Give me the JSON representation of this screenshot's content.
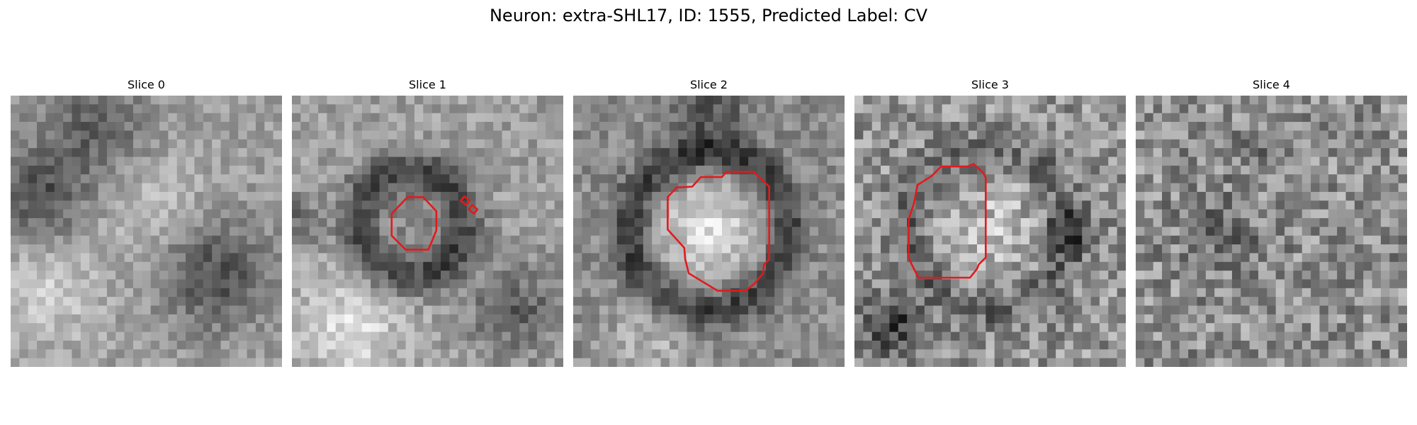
{
  "figure": {
    "title": "Neuron: extra-SHL17, ID: 1555, Predicted Label: CV",
    "contour_color": "#e31a1c",
    "colormap": "grayscale",
    "panels": [
      {
        "label": "Slice 0",
        "has_contour": false,
        "texture": "smooth blobs, dark band upper-left, darker round blob lower-right"
      },
      {
        "label": "Slice 1",
        "has_contour": true,
        "texture": "dark ring around mid-grey cell, bright lower-left"
      },
      {
        "label": "Slice 2",
        "has_contour": true,
        "texture": "bright cell body centred, dark surround"
      },
      {
        "label": "Slice 3",
        "has_contour": true,
        "texture": "noisy speckle, lighter cell centre"
      },
      {
        "label": "Slice 4",
        "has_contour": false,
        "texture": "fine noise, mid-grey"
      }
    ]
  }
}
